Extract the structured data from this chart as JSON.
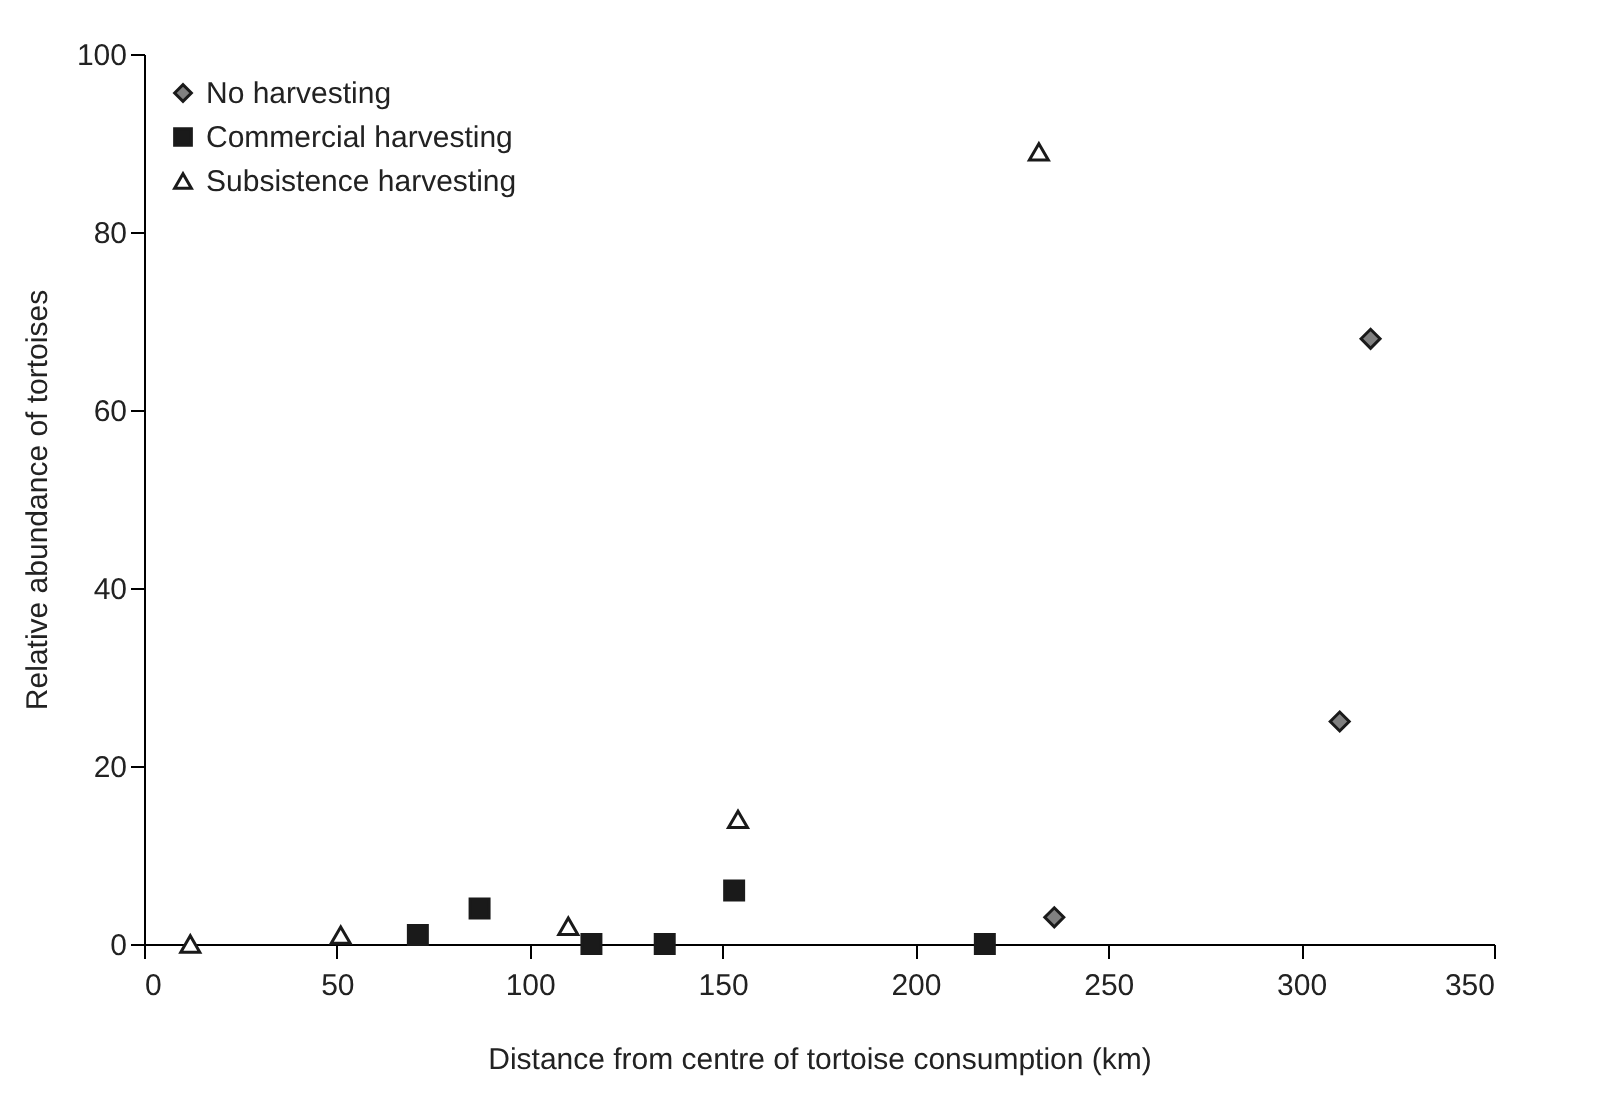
{
  "chart_data": {
    "type": "scatter",
    "xlabel": "Distance from centre of tortoise consumption (km)",
    "ylabel": "Relative abundance of tortoises",
    "xlim": [
      0,
      350
    ],
    "xticks": [
      0,
      50,
      100,
      150,
      200,
      250,
      300,
      350
    ],
    "ylim": [
      0,
      100
    ],
    "yticks": [
      0,
      20,
      40,
      60,
      80,
      100
    ],
    "grid": false,
    "legend": "top left",
    "series": [
      {
        "name": "No harvesting",
        "color": "#808080",
        "marker": "diamond",
        "x": [
          236,
          310,
          318
        ],
        "values": [
          3,
          25,
          68
        ]
      },
      {
        "name": "Commercial harvesting",
        "color": "#1a1a1a",
        "marker": "square",
        "x": [
          71,
          87,
          116,
          135,
          153,
          218
        ],
        "values": [
          1,
          4,
          0,
          0,
          6,
          0
        ]
      },
      {
        "name": "Subsistence harvesting",
        "color": "#ffffff",
        "marker": "triangle",
        "x": [
          12,
          51,
          110,
          154,
          232
        ],
        "values": [
          0,
          1,
          2,
          14,
          89
        ]
      }
    ]
  }
}
